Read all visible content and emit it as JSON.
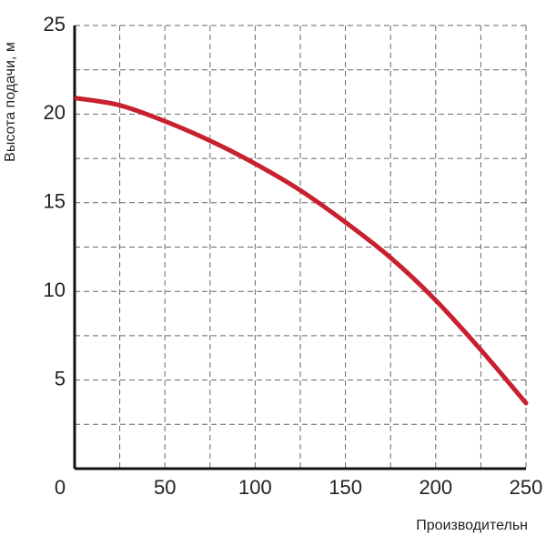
{
  "chart_data": {
    "type": "line",
    "x_label": "Производительн",
    "y_label": "Высота подачи, м",
    "x": [
      1,
      25,
      50,
      75,
      100,
      125,
      150,
      175,
      200,
      225,
      250
    ],
    "series": [
      {
        "color": "#c8202f",
        "values": [
          20.9,
          20.5,
          19.6,
          18.5,
          17.2,
          15.7,
          13.9,
          11.9,
          9.5,
          6.7,
          3.7
        ]
      }
    ],
    "xlim": [
      0,
      250
    ],
    "ylim": [
      0,
      25
    ],
    "xticks": [
      0,
      50,
      100,
      150,
      200,
      250
    ],
    "yticks": [
      5,
      10,
      15,
      20,
      25
    ],
    "xgrid": [
      25,
      50,
      75,
      100,
      125,
      150,
      175,
      200,
      225,
      250
    ],
    "ygrid": [
      2.5,
      5,
      7.5,
      10,
      12.5,
      15,
      17.5,
      20,
      22.5,
      25
    ],
    "grid": true
  }
}
